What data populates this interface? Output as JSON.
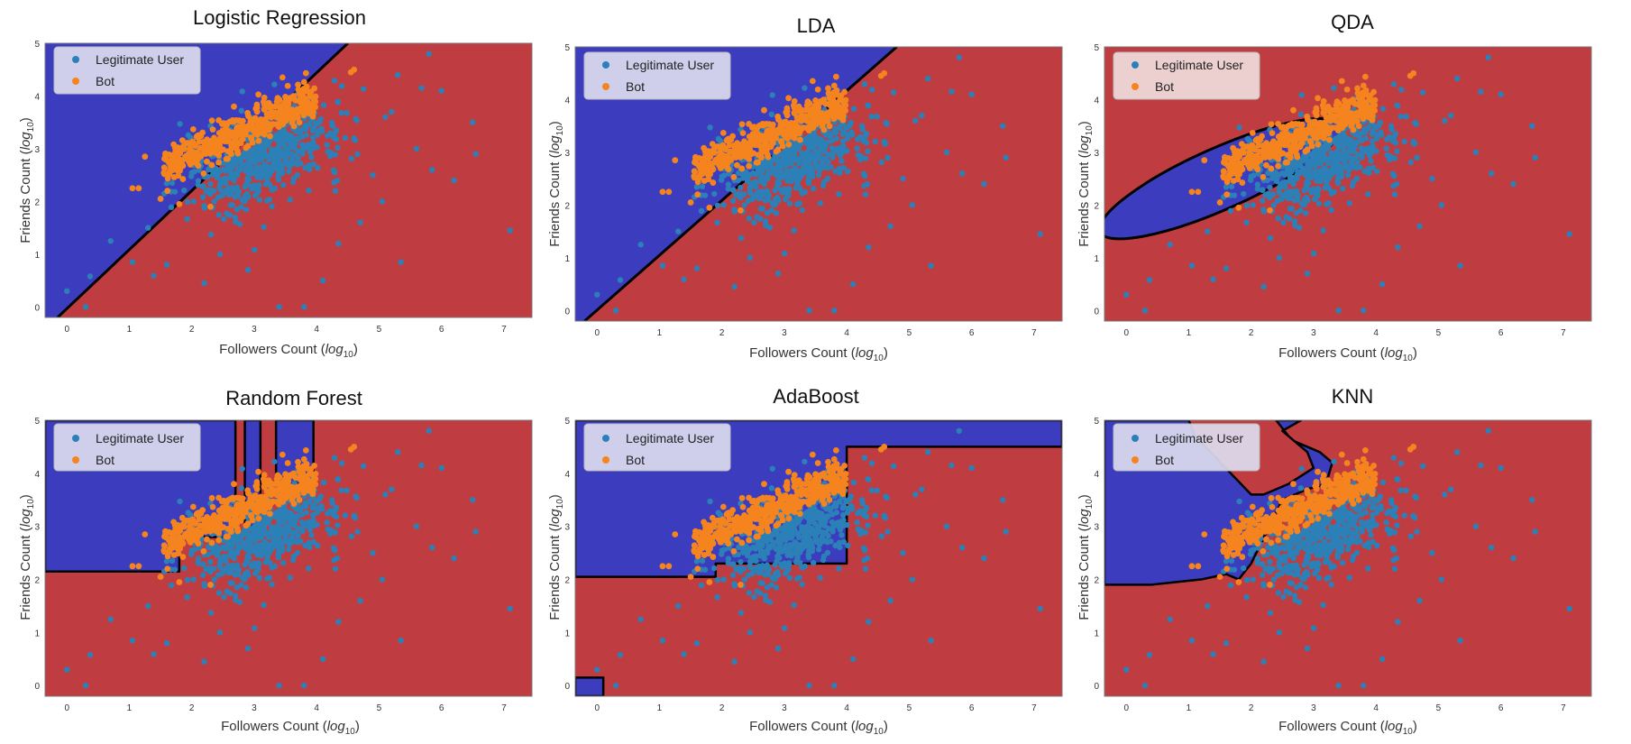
{
  "figure": {
    "colors": {
      "region_user": "#3c3cbf",
      "region_bot": "#bf3d40",
      "legit_user_point": "#2c80b8",
      "bot_point": "#f5841f",
      "boundary": "#000000"
    }
  },
  "chart_data": [
    {
      "type": "scatter",
      "title": "Logistic Regression",
      "xlabel": "Followers Count",
      "ylabel": "Friends Count",
      "label_sub": "log",
      "label_subscript": "10",
      "xlim": [
        -0.35,
        7.45
      ],
      "ylim": [
        -0.2,
        5.0
      ],
      "xticks": [
        "0",
        "1",
        "2",
        "3",
        "4",
        "5",
        "6",
        "7"
      ],
      "yticks": [
        "0",
        "1",
        "2",
        "3",
        "4",
        "5"
      ],
      "legend": {
        "placement": "top-left",
        "entries": [
          "Legitimate User",
          "Bot"
        ]
      },
      "decision_boundary": {
        "kind": "line",
        "points": [
          [
            -0.15,
            -0.2
          ],
          [
            4.5,
            5.0
          ]
        ]
      },
      "bot_region": "below-right of boundary"
    },
    {
      "type": "scatter",
      "title": "LDA",
      "xlabel": "Followers Count",
      "ylabel": "Friends Count",
      "label_sub": "log",
      "label_subscript": "10",
      "xlim": [
        -0.35,
        7.45
      ],
      "ylim": [
        -0.2,
        5.0
      ],
      "xticks": [
        "0",
        "1",
        "2",
        "3",
        "4",
        "5",
        "6",
        "7"
      ],
      "yticks": [
        "0",
        "1",
        "2",
        "3",
        "4",
        "5"
      ],
      "legend": {
        "placement": "top-left",
        "entries": [
          "Legitimate User",
          "Bot"
        ]
      },
      "decision_boundary": {
        "kind": "line",
        "points": [
          [
            -0.2,
            -0.2
          ],
          [
            4.8,
            5.0
          ]
        ]
      },
      "bot_region": "below-right of boundary"
    },
    {
      "type": "scatter",
      "title": "QDA",
      "xlabel": "Followers Count",
      "ylabel": "Friends Count",
      "label_sub": "log",
      "label_subscript": "10",
      "xlim": [
        -0.35,
        7.45
      ],
      "ylim": [
        -0.2,
        5.0
      ],
      "xticks": [
        "0",
        "1",
        "2",
        "3",
        "4",
        "5",
        "6",
        "7"
      ],
      "yticks": [
        "0",
        "1",
        "2",
        "3",
        "4",
        "5"
      ],
      "legend": {
        "placement": "top-left",
        "entries": [
          "Legitimate User",
          "Bot"
        ]
      },
      "decision_boundary": {
        "kind": "ellipse",
        "center": [
          1.5,
          2.5
        ],
        "radii": [
          2.1,
          0.58
        ],
        "angle_deg": 24
      },
      "bot_region": "outside ellipse"
    },
    {
      "type": "scatter",
      "title": "Random Forest",
      "xlabel": "Followers Count",
      "ylabel": "Friends Count",
      "label_sub": "log",
      "label_subscript": "10",
      "xlim": [
        -0.35,
        7.45
      ],
      "ylim": [
        -0.2,
        5.0
      ],
      "xticks": [
        "0",
        "1",
        "2",
        "3",
        "4",
        "5",
        "6",
        "7"
      ],
      "yticks": [
        "0",
        "1",
        "2",
        "3",
        "4",
        "5"
      ],
      "legend": {
        "placement": "top-left",
        "entries": [
          "Legitimate User",
          "Bot"
        ]
      },
      "decision_boundary": {
        "kind": "regions",
        "user_regions": [
          [
            [
              -0.35,
              2.15
            ],
            [
              1.8,
              2.15
            ],
            [
              1.8,
              2.8
            ],
            [
              2.7,
              2.8
            ],
            [
              2.7,
              3.2
            ],
            [
              2.7,
              5.0
            ],
            [
              -0.35,
              5.0
            ]
          ],
          [
            [
              2.85,
              3.0
            ],
            [
              3.1,
              3.0
            ],
            [
              3.1,
              5.0
            ],
            [
              2.85,
              5.0
            ]
          ],
          [
            [
              3.35,
              3.8
            ],
            [
              3.95,
              3.8
            ],
            [
              3.95,
              5.0
            ],
            [
              3.35,
              5.0
            ]
          ]
        ]
      },
      "bot_region": "everywhere else"
    },
    {
      "type": "scatter",
      "title": "AdaBoost",
      "xlabel": "Followers Count",
      "ylabel": "Friends Count",
      "label_sub": "log",
      "label_subscript": "10",
      "xlim": [
        -0.35,
        7.45
      ],
      "ylim": [
        -0.2,
        5.0
      ],
      "xticks": [
        "0",
        "1",
        "2",
        "3",
        "4",
        "5",
        "6",
        "7"
      ],
      "yticks": [
        "0",
        "1",
        "2",
        "3",
        "4",
        "5"
      ],
      "legend": {
        "placement": "top-left",
        "entries": [
          "Legitimate User",
          "Bot"
        ]
      },
      "decision_boundary": {
        "kind": "regions",
        "user_regions": [
          [
            [
              -0.35,
              2.05
            ],
            [
              1.9,
              2.05
            ],
            [
              1.9,
              2.3
            ],
            [
              4.0,
              2.3
            ],
            [
              4.0,
              4.5
            ],
            [
              7.45,
              4.5
            ],
            [
              7.45,
              5.0
            ],
            [
              -0.35,
              5.0
            ]
          ],
          [
            [
              -0.35,
              -0.2
            ],
            [
              0.1,
              -0.2
            ],
            [
              0.1,
              0.15
            ],
            [
              -0.35,
              0.15
            ]
          ]
        ]
      },
      "bot_region": "everywhere else"
    },
    {
      "type": "scatter",
      "title": "KNN",
      "xlabel": "Followers Count",
      "ylabel": "Friends Count",
      "label_sub": "log",
      "label_subscript": "10",
      "xlim": [
        -0.35,
        7.45
      ],
      "ylim": [
        -0.2,
        5.0
      ],
      "xticks": [
        "0",
        "1",
        "2",
        "3",
        "4",
        "5",
        "6",
        "7"
      ],
      "yticks": [
        "0",
        "1",
        "2",
        "3",
        "4",
        "5"
      ],
      "legend": {
        "placement": "top-left",
        "entries": [
          "Legitimate User",
          "Bot"
        ]
      },
      "decision_boundary": {
        "kind": "regions",
        "user_regions": [
          [
            [
              -0.35,
              1.9
            ],
            [
              0.4,
              1.9
            ],
            [
              1.2,
              2.0
            ],
            [
              1.6,
              2.1
            ],
            [
              1.8,
              2.0
            ],
            [
              2.0,
              2.3
            ],
            [
              2.5,
              3.5
            ],
            [
              2.9,
              3.7
            ],
            [
              3.2,
              3.8
            ],
            [
              3.3,
              4.2
            ],
            [
              3.1,
              4.4
            ],
            [
              2.7,
              4.6
            ],
            [
              2.5,
              4.8
            ],
            [
              2.8,
              5.0
            ],
            [
              2.4,
              5.0
            ],
            [
              2.6,
              4.7
            ],
            [
              2.9,
              4.4
            ],
            [
              3.0,
              4.1
            ],
            [
              2.6,
              3.8
            ],
            [
              2.2,
              3.6
            ],
            [
              2.0,
              3.6
            ],
            [
              1.55,
              4.15
            ],
            [
              1.1,
              4.7
            ],
            [
              1.0,
              5.0
            ],
            [
              -0.35,
              5.0
            ]
          ]
        ]
      },
      "bot_region": "everywhere else"
    }
  ]
}
